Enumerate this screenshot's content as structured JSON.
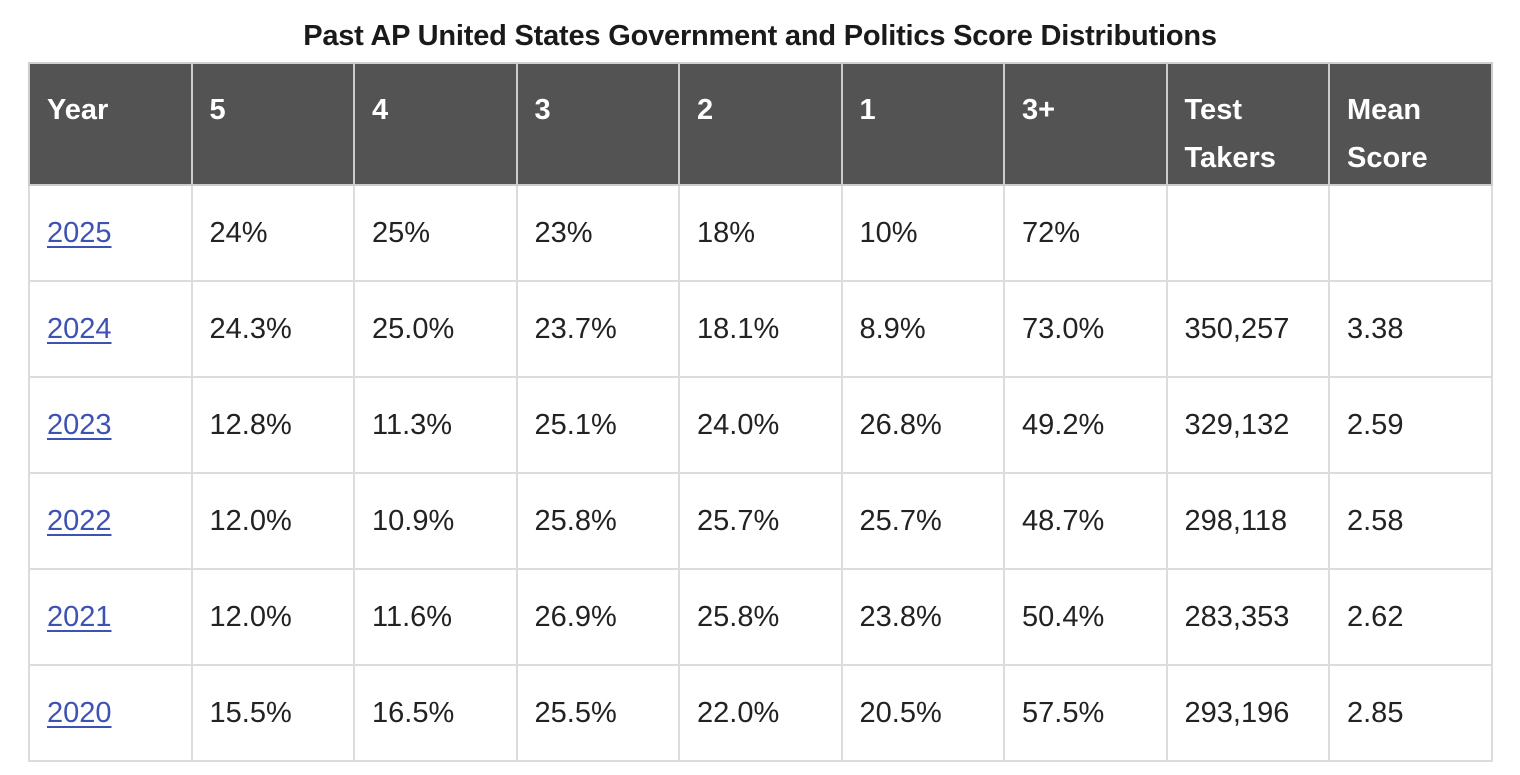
{
  "title": "Past AP United States Government and Politics Score Distributions",
  "colors": {
    "header_bg": "#535353",
    "header_text": "#ffffff",
    "link": "#3d52b4",
    "border": "#dcdcdc"
  },
  "table": {
    "headers": [
      "Year",
      "5",
      "4",
      "3",
      "2",
      "1",
      "3+",
      "Test Takers",
      "Mean Score"
    ],
    "rows": [
      {
        "year": "2025",
        "s5": "24%",
        "s4": "25%",
        "s3": "23%",
        "s2": "18%",
        "s1": "10%",
        "s3plus": "72%",
        "takers": "",
        "mean": ""
      },
      {
        "year": "2024",
        "s5": "24.3%",
        "s4": "25.0%",
        "s3": "23.7%",
        "s2": "18.1%",
        "s1": "8.9%",
        "s3plus": "73.0%",
        "takers": "350,257",
        "mean": "3.38"
      },
      {
        "year": "2023",
        "s5": "12.8%",
        "s4": "11.3%",
        "s3": "25.1%",
        "s2": "24.0%",
        "s1": "26.8%",
        "s3plus": "49.2%",
        "takers": "329,132",
        "mean": "2.59"
      },
      {
        "year": "2022",
        "s5": "12.0%",
        "s4": "10.9%",
        "s3": "25.8%",
        "s2": "25.7%",
        "s1": "25.7%",
        "s3plus": "48.7%",
        "takers": "298,118",
        "mean": "2.58"
      },
      {
        "year": "2021",
        "s5": "12.0%",
        "s4": "11.6%",
        "s3": "26.9%",
        "s2": "25.8%",
        "s1": "23.8%",
        "s3plus": "50.4%",
        "takers": "283,353",
        "mean": "2.62"
      },
      {
        "year": "2020",
        "s5": "15.5%",
        "s4": "16.5%",
        "s3": "25.5%",
        "s2": "22.0%",
        "s1": "20.5%",
        "s3plus": "57.5%",
        "takers": "293,196",
        "mean": "2.85"
      }
    ]
  }
}
